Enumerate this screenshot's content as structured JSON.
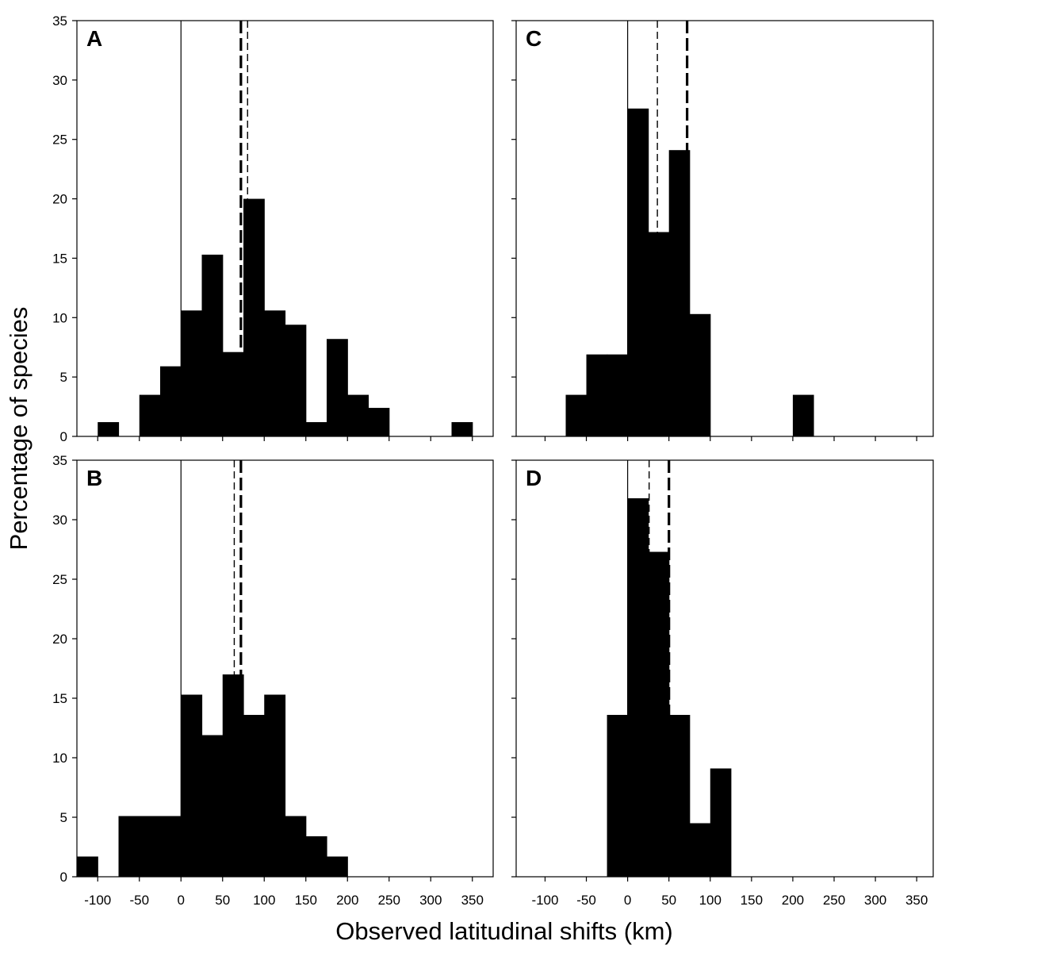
{
  "figure": {
    "xlabel": "Observed latitudinal shifts (km)",
    "ylabel": "Percentage of species",
    "x_ticks": [
      -100,
      -50,
      0,
      50,
      100,
      150,
      200,
      250,
      300,
      350
    ],
    "y_ticks": [
      0,
      5,
      10,
      15,
      20,
      25,
      30,
      35
    ],
    "colors": {
      "bars": "#000000",
      "lines": "#000000",
      "background": "#ffffff"
    }
  },
  "chart_data": [
    {
      "type": "bar",
      "panel": "A",
      "bin_width": 25,
      "xlim": [
        -125,
        375
      ],
      "ylim": [
        0,
        35
      ],
      "bins": [
        {
          "start": -100,
          "value": 1.2
        },
        {
          "start": -50,
          "value": 3.5
        },
        {
          "start": -25,
          "value": 5.9
        },
        {
          "start": 0,
          "value": 10.6
        },
        {
          "start": 25,
          "value": 15.3
        },
        {
          "start": 50,
          "value": 7.1
        },
        {
          "start": 75,
          "value": 20.0
        },
        {
          "start": 100,
          "value": 10.6
        },
        {
          "start": 125,
          "value": 9.4
        },
        {
          "start": 150,
          "value": 1.2
        },
        {
          "start": 175,
          "value": 8.2
        },
        {
          "start": 200,
          "value": 3.5
        },
        {
          "start": 225,
          "value": 2.4
        },
        {
          "start": 325,
          "value": 1.2
        }
      ],
      "reference_line": 0,
      "mean_lines": [
        {
          "x": 72,
          "style": "heavy-dashed"
        },
        {
          "x": 80,
          "style": "light-dashed"
        }
      ]
    },
    {
      "type": "bar",
      "panel": "B",
      "bin_width": 25,
      "xlim": [
        -125,
        375
      ],
      "ylim": [
        0,
        35
      ],
      "bins": [
        {
          "start": -125,
          "value": 1.7
        },
        {
          "start": -75,
          "value": 5.1
        },
        {
          "start": -50,
          "value": 5.1
        },
        {
          "start": -25,
          "value": 5.1
        },
        {
          "start": 0,
          "value": 15.3
        },
        {
          "start": 25,
          "value": 11.9
        },
        {
          "start": 50,
          "value": 17.0
        },
        {
          "start": 75,
          "value": 13.6
        },
        {
          "start": 100,
          "value": 15.3
        },
        {
          "start": 125,
          "value": 5.1
        },
        {
          "start": 150,
          "value": 3.4
        },
        {
          "start": 175,
          "value": 1.7
        }
      ],
      "reference_line": 0,
      "mean_lines": [
        {
          "x": 72,
          "style": "heavy-dashed"
        },
        {
          "x": 64,
          "style": "light-dashed"
        }
      ]
    },
    {
      "type": "bar",
      "panel": "C",
      "bin_width": 25,
      "xlim": [
        -135,
        370
      ],
      "ylim": [
        0,
        35
      ],
      "bins": [
        {
          "start": -75,
          "value": 3.5
        },
        {
          "start": -50,
          "value": 6.9
        },
        {
          "start": -25,
          "value": 6.9
        },
        {
          "start": 0,
          "value": 27.6
        },
        {
          "start": 25,
          "value": 17.2
        },
        {
          "start": 50,
          "value": 24.1
        },
        {
          "start": 75,
          "value": 10.3
        },
        {
          "start": 200,
          "value": 3.5
        }
      ],
      "reference_line": 0,
      "mean_lines": [
        {
          "x": 72,
          "style": "heavy-dashed"
        },
        {
          "x": 36,
          "style": "light-dashed"
        }
      ]
    },
    {
      "type": "bar",
      "panel": "D",
      "bin_width": 25,
      "xlim": [
        -135,
        370
      ],
      "ylim": [
        0,
        35
      ],
      "bins": [
        {
          "start": -25,
          "value": 13.6
        },
        {
          "start": 0,
          "value": 31.8
        },
        {
          "start": 25,
          "value": 27.3
        },
        {
          "start": 50,
          "value": 13.6
        },
        {
          "start": 75,
          "value": 4.5
        },
        {
          "start": 100,
          "value": 9.1
        }
      ],
      "reference_line": 0,
      "mean_lines": [
        {
          "x": 50,
          "style": "heavy-dashed"
        },
        {
          "x": 26,
          "style": "light-dashed"
        }
      ]
    }
  ]
}
